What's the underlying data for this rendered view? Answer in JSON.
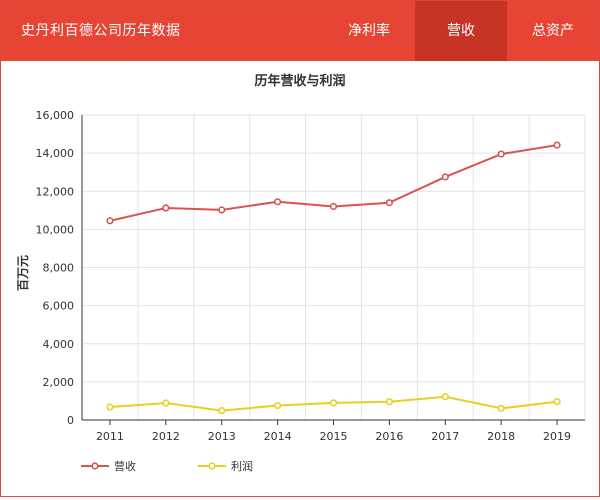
{
  "header": {
    "title": "史丹利百德公司历年数据",
    "tabs": [
      {
        "label": "净利率",
        "active": false
      },
      {
        "label": "营收",
        "active": true
      },
      {
        "label": "总资产",
        "active": false
      }
    ]
  },
  "colors": {
    "accent": "#e64535",
    "tab_active": "#c73426",
    "revenue_line": "#d9534f",
    "profit_line": "#e8d020"
  },
  "chart_data": {
    "type": "line",
    "title": "历年营收与利润",
    "xlabel": "",
    "ylabel": "百万元",
    "categories": [
      "2011",
      "2012",
      "2013",
      "2014",
      "2015",
      "2016",
      "2017",
      "2018",
      "2019"
    ],
    "ylim": [
      0,
      16000
    ],
    "yticks": [
      0,
      2000,
      4000,
      6000,
      8000,
      10000,
      12000,
      14000,
      16000
    ],
    "ytick_labels": [
      "0",
      "2,000",
      "4,000",
      "6,000",
      "8,000",
      "10,000",
      "12,000",
      "14,000",
      "16,000"
    ],
    "grid": true,
    "legend_position": "bottom-left",
    "series": [
      {
        "name": "营收",
        "color": "#d9534f",
        "values": [
          10450,
          11120,
          11020,
          11450,
          11200,
          11400,
          12750,
          13950,
          14420
        ]
      },
      {
        "name": "利润",
        "color": "#e8d020",
        "values": [
          680,
          890,
          490,
          760,
          900,
          960,
          1220,
          610,
          960
        ]
      }
    ]
  }
}
